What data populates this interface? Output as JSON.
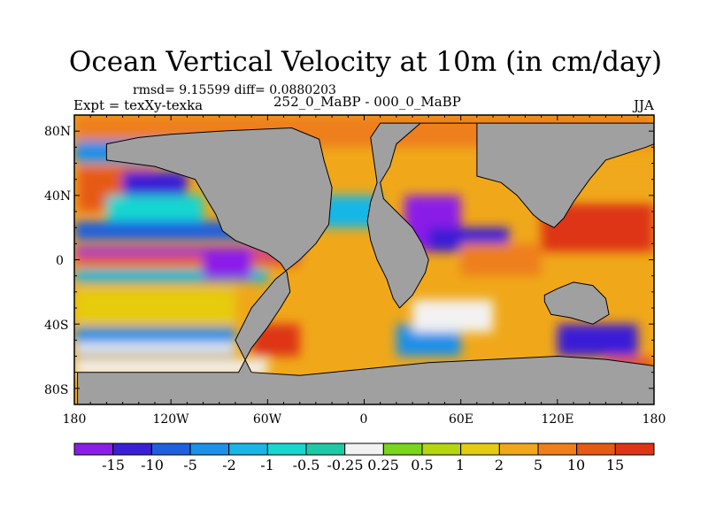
{
  "figure": {
    "title": "Ocean Vertical Velocity at 10m (in cm/day)",
    "stats": "rmsd= 9.15599 diff= 0.0880203",
    "left_label": "Expt = texXy-texka",
    "center_label": "252_0_MaBP - 000_0_MaBP",
    "right_label": "JJA",
    "land_color": "#a0a0a0"
  },
  "chart_data": {
    "type": "heatmap",
    "title": "Ocean Vertical Velocity at 10m (in cm/day)",
    "xlabel": "",
    "ylabel": "",
    "x_range": [
      -180,
      180
    ],
    "y_range": [
      -90,
      90
    ],
    "x_ticks": [
      -180,
      -120,
      -60,
      0,
      60,
      120,
      180
    ],
    "x_tick_labels": [
      "180",
      "120W",
      "60W",
      "0",
      "60E",
      "120E",
      "180"
    ],
    "y_ticks": [
      80,
      40,
      0,
      -40,
      -80
    ],
    "y_tick_labels": [
      "80N",
      "40N",
      "0",
      "40S",
      "80S"
    ],
    "colorbar": {
      "levels": [
        "-15",
        "-10",
        "-5",
        "-2",
        "-1",
        "-0.5",
        "-0.25",
        "0.25",
        "0.5",
        "1",
        "2",
        "5",
        "10",
        "15"
      ],
      "colors": [
        "#8b1de8",
        "#3a1fd6",
        "#1f5fe0",
        "#1e90e8",
        "#19b6e6",
        "#17d6d0",
        "#1ec9a6",
        "#f2f2f2",
        "#7ad61a",
        "#b5d60e",
        "#e6cc10",
        "#f0a81a",
        "#ee7f1a",
        "#e65a14",
        "#dd3516"
      ]
    },
    "landmasses": [
      {
        "name": "americas",
        "poly": [
          [
            -178,
            -70
          ],
          [
            -178,
            -90
          ],
          [
            180,
            -90
          ],
          [
            180,
            -66
          ],
          [
            150,
            -62
          ],
          [
            120,
            -60
          ],
          [
            80,
            -62
          ],
          [
            40,
            -64
          ],
          [
            0,
            -68
          ],
          [
            -40,
            -72
          ],
          [
            -70,
            -70
          ],
          [
            -80,
            -50
          ],
          [
            -70,
            -30
          ],
          [
            -55,
            -12
          ],
          [
            -40,
            0
          ],
          [
            -30,
            10
          ],
          [
            -22,
            22
          ],
          [
            -20,
            45
          ],
          [
            -25,
            62
          ],
          [
            -28,
            75
          ],
          [
            -45,
            82
          ],
          [
            -90,
            80
          ],
          [
            -120,
            78
          ],
          [
            -140,
            76
          ],
          [
            -160,
            72
          ],
          [
            -160,
            62
          ],
          [
            -130,
            58
          ],
          [
            -105,
            50
          ],
          [
            -98,
            38
          ],
          [
            -92,
            28
          ],
          [
            -88,
            18
          ],
          [
            -80,
            12
          ],
          [
            -70,
            8
          ],
          [
            -60,
            4
          ],
          [
            -52,
            -2
          ],
          [
            -48,
            -8
          ],
          [
            -46,
            -20
          ],
          [
            -52,
            -30
          ],
          [
            -60,
            -42
          ],
          [
            -70,
            -55
          ],
          [
            -78,
            -70
          ]
        ]
      },
      {
        "name": "eurasia",
        "poly": [
          [
            10,
            85
          ],
          [
            70,
            85
          ],
          [
            70,
            52
          ],
          [
            85,
            48
          ],
          [
            95,
            40
          ],
          [
            100,
            34
          ],
          [
            105,
            28
          ],
          [
            110,
            24
          ],
          [
            118,
            20
          ],
          [
            124,
            26
          ],
          [
            130,
            36
          ],
          [
            140,
            50
          ],
          [
            150,
            62
          ],
          [
            175,
            70
          ],
          [
            180,
            72
          ],
          [
            180,
            85
          ],
          [
            35,
            85
          ],
          [
            20,
            72
          ],
          [
            16,
            58
          ],
          [
            10,
            48
          ],
          [
            12,
            38
          ],
          [
            20,
            30
          ],
          [
            30,
            20
          ],
          [
            36,
            10
          ],
          [
            40,
            0
          ],
          [
            38,
            -8
          ],
          [
            30,
            -22
          ],
          [
            22,
            -30
          ],
          [
            18,
            -24
          ],
          [
            14,
            -12
          ],
          [
            8,
            0
          ],
          [
            4,
            12
          ],
          [
            2,
            24
          ],
          [
            4,
            36
          ],
          [
            8,
            48
          ],
          [
            6,
            62
          ],
          [
            4,
            76
          ]
        ]
      },
      {
        "name": "australia",
        "poly": [
          [
            112,
            -22
          ],
          [
            120,
            -18
          ],
          [
            130,
            -14
          ],
          [
            142,
            -16
          ],
          [
            150,
            -24
          ],
          [
            152,
            -34
          ],
          [
            142,
            -40
          ],
          [
            128,
            -36
          ],
          [
            116,
            -34
          ],
          [
            112,
            -26
          ]
        ]
      }
    ]
  }
}
